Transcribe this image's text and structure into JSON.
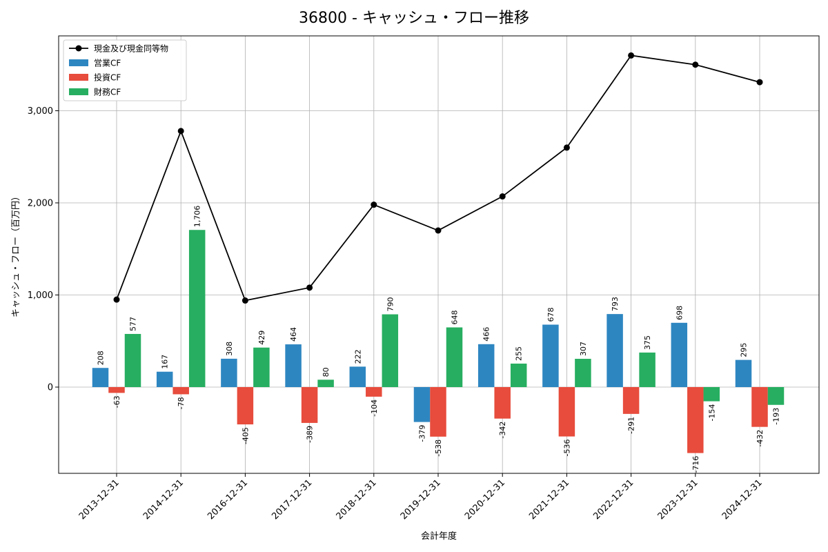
{
  "chart_data": {
    "type": "bar",
    "title": "36800 - キャッシュ・フロー推移",
    "xlabel": "会計年度",
    "ylabel": "キャッシュ・フロー（百万円）",
    "categories": [
      "2013-12-31",
      "2014-12-31",
      "2016-12-31",
      "2017-12-31",
      "2018-12-31",
      "2019-12-31",
      "2020-12-31",
      "2021-12-31",
      "2022-12-31",
      "2023-12-31",
      "2024-12-31"
    ],
    "ylim": [
      -935,
      4000
    ],
    "yticks": [
      0,
      1000,
      2000,
      3000
    ],
    "ytick_labels": [
      "0",
      "1,000",
      "2,000",
      "3,000"
    ],
    "grid": true,
    "legend_position": "top-left",
    "series": [
      {
        "name": "現金及び現金同等物",
        "kind": "line",
        "color": "#000000",
        "values": [
          950,
          2780,
          940,
          1080,
          1980,
          1700,
          2070,
          2600,
          3600,
          3500,
          3310
        ]
      },
      {
        "name": "営業CF",
        "kind": "bar",
        "color": "#2e86c1",
        "values": [
          208,
          167,
          308,
          464,
          222,
          -379,
          466,
          678,
          793,
          698,
          295
        ],
        "labels": [
          "208",
          "167",
          "308",
          "464",
          "222",
          "-379",
          "466",
          "678",
          "793",
          "698",
          "295"
        ]
      },
      {
        "name": "投資CF",
        "kind": "bar",
        "color": "#e74c3c",
        "values": [
          -63,
          -78,
          -405,
          -389,
          -104,
          -538,
          -342,
          -536,
          -291,
          -716,
          -432
        ],
        "labels": [
          "-63",
          "-78",
          "-405",
          "-389",
          "-104",
          "-538",
          "-342",
          "-536",
          "-291",
          "-716",
          "-432"
        ]
      },
      {
        "name": "財務CF",
        "kind": "bar",
        "color": "#27ae60",
        "values": [
          577,
          1706,
          429,
          80,
          790,
          648,
          255,
          307,
          375,
          -154,
          -193
        ],
        "labels": [
          "577",
          "1,706",
          "429",
          "80",
          "790",
          "648",
          "255",
          "307",
          "375",
          "-154",
          "-193"
        ]
      }
    ]
  }
}
